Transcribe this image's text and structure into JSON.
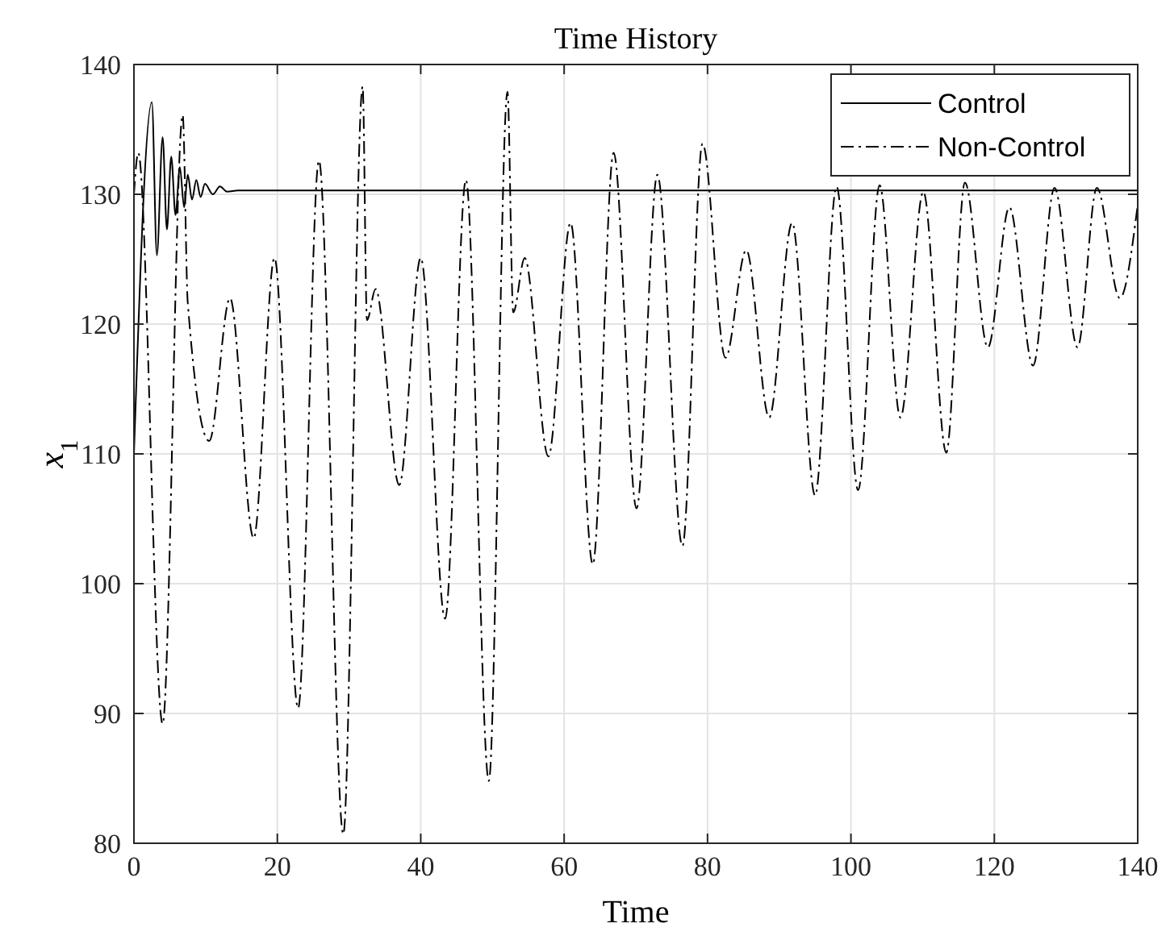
{
  "chart_data": {
    "type": "line",
    "title": "Time History",
    "xlabel": "Time",
    "ylabel": "x$_{1}$",
    "xlim": [
      0,
      140
    ],
    "xticks": [
      0,
      20,
      40,
      60,
      80,
      100,
      120,
      140
    ],
    "ylim": [
      80,
      140
    ],
    "yticks": [
      80,
      90,
      100,
      110,
      120,
      130,
      140
    ],
    "grid": true,
    "legend": "top right",
    "series": [
      {
        "name": "Control",
        "color": "#000000",
        "line_style": "solid",
        "x": [
          0,
          2.5,
          3.2,
          4,
          4.6,
          5.2,
          5.8,
          6.4,
          7,
          7.5,
          8.1,
          8.7,
          9.3,
          9.9,
          11,
          12,
          13,
          14.5,
          140
        ],
        "values": [
          110,
          137.1,
          125.3,
          134.4,
          127.3,
          132.9,
          128.4,
          132.1,
          129,
          131.5,
          129.6,
          131.1,
          129.8,
          130.8,
          130,
          130.6,
          130.2,
          130.3,
          130.3
        ]
      },
      {
        "name": "Non-Control",
        "color": "#000000",
        "line_style": "dashdot",
        "x": [
          0,
          0.6,
          4,
          6.8,
          7.5,
          10.5,
          13.4,
          16.7,
          19.6,
          22.9,
          25.8,
          29.2,
          31.9,
          32.5,
          33.7,
          37,
          40,
          43.4,
          46.3,
          49.5,
          52.1,
          52.9,
          54.5,
          57.8,
          60.9,
          64,
          66.9,
          70.1,
          73,
          76.5,
          79.3,
          82.5,
          85.4,
          88.6,
          91.8,
          95,
          98,
          101,
          104,
          106.9,
          110.1,
          113.3,
          115.9,
          119.1,
          122.1,
          125.4,
          128.4,
          131.6,
          134.3,
          137.5,
          140
        ],
        "values": [
          130,
          133.2,
          89.2,
          136.1,
          121.7,
          111,
          122,
          103.5,
          125.1,
          90.4,
          132.6,
          80.7,
          138.3,
          120.3,
          122.7,
          107.6,
          125.1,
          97.3,
          131.1,
          84.8,
          137.9,
          120.9,
          125.1,
          109.8,
          127.8,
          101.5,
          133.2,
          105.8,
          131.5,
          102.9,
          133.9,
          117.4,
          125.7,
          112.8,
          127.8,
          106.8,
          130.6,
          107.2,
          130.7,
          112.8,
          130.2,
          110.1,
          130.9,
          118.2,
          129,
          116.8,
          130.5,
          118.2,
          130.5,
          122,
          129.2
        ]
      }
    ]
  }
}
